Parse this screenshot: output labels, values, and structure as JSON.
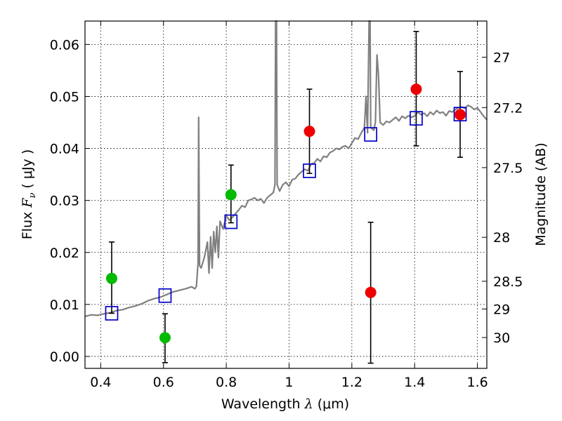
{
  "chart_data": {
    "type": "scatter",
    "xlabel_prefix": "Wavelength  ",
    "xlabel_symbol": "λ",
    "xlabel_unit": " (μm)",
    "ylabel_prefix": "Flux  ",
    "ylabel_symbol": "F",
    "ylabel_subscript": "ν",
    "ylabel_unit": "  ( μJy )",
    "y2label": "Magnitude (AB)",
    "xlim": [
      0.35,
      1.63
    ],
    "ylim": [
      -0.0023,
      0.0645
    ],
    "grid": true,
    "grid_style": "dotted",
    "x_ticks": [
      {
        "value": 0.4,
        "label": "0.4"
      },
      {
        "value": 0.6,
        "label": "0.6"
      },
      {
        "value": 0.8,
        "label": "0.8"
      },
      {
        "value": 1.0,
        "label": "1"
      },
      {
        "value": 1.2,
        "label": "1.2"
      },
      {
        "value": 1.4,
        "label": "1.4"
      },
      {
        "value": 1.6,
        "label": "1.6"
      }
    ],
    "y_ticks": [
      {
        "value": 0.0,
        "label": "0.00"
      },
      {
        "value": 0.01,
        "label": "0.01"
      },
      {
        "value": 0.02,
        "label": "0.02"
      },
      {
        "value": 0.03,
        "label": "0.03"
      },
      {
        "value": 0.04,
        "label": "0.04"
      },
      {
        "value": 0.05,
        "label": "0.05"
      },
      {
        "value": 0.06,
        "label": "0.06"
      }
    ],
    "y2_ticks": [
      {
        "mag": 27,
        "label": "27"
      },
      {
        "mag": 27.2,
        "label": "27.2"
      },
      {
        "mag": 27.5,
        "label": "27.5"
      },
      {
        "mag": 28,
        "label": "28"
      },
      {
        "mag": 28.5,
        "label": "28.5"
      },
      {
        "mag": 29,
        "label": "29"
      },
      {
        "mag": 30,
        "label": "30"
      }
    ],
    "colors": {
      "spectrum": "#808080",
      "model": "#0000cc",
      "green": "#00bb00",
      "red": "#ee0000",
      "error": "#000000"
    },
    "spectrum": [
      [
        0.35,
        0.0077
      ],
      [
        0.37,
        0.008
      ],
      [
        0.39,
        0.0079
      ],
      [
        0.41,
        0.0082
      ],
      [
        0.43,
        0.0084
      ],
      [
        0.45,
        0.0088
      ],
      [
        0.47,
        0.009
      ],
      [
        0.49,
        0.0094
      ],
      [
        0.51,
        0.0097
      ],
      [
        0.53,
        0.0101
      ],
      [
        0.55,
        0.0107
      ],
      [
        0.57,
        0.0111
      ],
      [
        0.59,
        0.0114
      ],
      [
        0.61,
        0.0119
      ],
      [
        0.63,
        0.0124
      ],
      [
        0.65,
        0.0127
      ],
      [
        0.67,
        0.013
      ],
      [
        0.69,
        0.0134
      ],
      [
        0.7,
        0.013
      ],
      [
        0.705,
        0.0135
      ],
      [
        0.71,
        0.018
      ],
      [
        0.712,
        0.046
      ],
      [
        0.715,
        0.0175
      ],
      [
        0.72,
        0.017
      ],
      [
        0.73,
        0.019
      ],
      [
        0.74,
        0.022
      ],
      [
        0.745,
        0.016
      ],
      [
        0.75,
        0.023
      ],
      [
        0.755,
        0.017
      ],
      [
        0.76,
        0.024
      ],
      [
        0.765,
        0.02
      ],
      [
        0.77,
        0.025
      ],
      [
        0.775,
        0.019
      ],
      [
        0.78,
        0.026
      ],
      [
        0.79,
        0.0245
      ],
      [
        0.8,
        0.027
      ],
      [
        0.81,
        0.0262
      ],
      [
        0.82,
        0.0268
      ],
      [
        0.83,
        0.0275
      ],
      [
        0.84,
        0.0282
      ],
      [
        0.85,
        0.029
      ],
      [
        0.86,
        0.0287
      ],
      [
        0.87,
        0.03
      ],
      [
        0.88,
        0.0302
      ],
      [
        0.89,
        0.0305
      ],
      [
        0.9,
        0.03
      ],
      [
        0.91,
        0.0303
      ],
      [
        0.92,
        0.0295
      ],
      [
        0.93,
        0.0305
      ],
      [
        0.94,
        0.031
      ],
      [
        0.95,
        0.0315
      ],
      [
        0.955,
        0.033
      ],
      [
        0.957,
        0.065
      ],
      [
        0.96,
        0.065
      ],
      [
        0.962,
        0.033
      ],
      [
        0.97,
        0.0318
      ],
      [
        0.98,
        0.033
      ],
      [
        0.99,
        0.0335
      ],
      [
        1.0,
        0.0327
      ],
      [
        1.01,
        0.034
      ],
      [
        1.02,
        0.0342
      ],
      [
        1.03,
        0.035
      ],
      [
        1.04,
        0.0355
      ],
      [
        1.05,
        0.036
      ],
      [
        1.06,
        0.0357
      ],
      [
        1.07,
        0.037
      ],
      [
        1.08,
        0.0372
      ],
      [
        1.09,
        0.038
      ],
      [
        1.1,
        0.0375
      ],
      [
        1.11,
        0.0385
      ],
      [
        1.12,
        0.0383
      ],
      [
        1.13,
        0.0392
      ],
      [
        1.14,
        0.0395
      ],
      [
        1.15,
        0.04
      ],
      [
        1.16,
        0.0398
      ],
      [
        1.17,
        0.0403
      ],
      [
        1.18,
        0.0405
      ],
      [
        1.19,
        0.04
      ],
      [
        1.2,
        0.041
      ],
      [
        1.21,
        0.042
      ],
      [
        1.22,
        0.0418
      ],
      [
        1.23,
        0.043
      ],
      [
        1.24,
        0.044
      ],
      [
        1.245,
        0.05
      ],
      [
        1.25,
        0.043
      ],
      [
        1.255,
        0.065
      ],
      [
        1.258,
        0.065
      ],
      [
        1.26,
        0.044
      ],
      [
        1.27,
        0.0435
      ],
      [
        1.275,
        0.045
      ],
      [
        1.28,
        0.058
      ],
      [
        1.285,
        0.054
      ],
      [
        1.29,
        0.045
      ],
      [
        1.3,
        0.0445
      ],
      [
        1.31,
        0.0452
      ],
      [
        1.32,
        0.045
      ],
      [
        1.33,
        0.0455
      ],
      [
        1.34,
        0.046
      ],
      [
        1.35,
        0.0453
      ],
      [
        1.36,
        0.0462
      ],
      [
        1.37,
        0.0458
      ],
      [
        1.38,
        0.0463
      ],
      [
        1.39,
        0.046
      ],
      [
        1.4,
        0.0462
      ],
      [
        1.41,
        0.047
      ],
      [
        1.42,
        0.0465
      ],
      [
        1.43,
        0.0468
      ],
      [
        1.44,
        0.0462
      ],
      [
        1.45,
        0.047
      ],
      [
        1.46,
        0.0465
      ],
      [
        1.47,
        0.0473
      ],
      [
        1.48,
        0.0468
      ],
      [
        1.49,
        0.047
      ],
      [
        1.5,
        0.0463
      ],
      [
        1.51,
        0.0472
      ],
      [
        1.52,
        0.047
      ],
      [
        1.53,
        0.0475
      ],
      [
        1.54,
        0.0478
      ],
      [
        1.55,
        0.048
      ],
      [
        1.56,
        0.0477
      ],
      [
        1.57,
        0.0483
      ],
      [
        1.58,
        0.048
      ],
      [
        1.59,
        0.0475
      ],
      [
        1.6,
        0.0478
      ],
      [
        1.61,
        0.047
      ],
      [
        1.62,
        0.0462
      ],
      [
        1.63,
        0.0455
      ]
    ],
    "model_points": [
      {
        "x": 0.435,
        "y": 0.0083
      },
      {
        "x": 0.605,
        "y": 0.0117
      },
      {
        "x": 0.815,
        "y": 0.0259
      },
      {
        "x": 1.065,
        "y": 0.0357
      },
      {
        "x": 1.26,
        "y": 0.0427
      },
      {
        "x": 1.405,
        "y": 0.0458
      },
      {
        "x": 1.545,
        "y": 0.0466
      }
    ],
    "measurements": [
      {
        "x": 0.435,
        "y": 0.015,
        "ylo": 0.0083,
        "yhi": 0.022,
        "color": "green"
      },
      {
        "x": 0.605,
        "y": 0.0036,
        "ylo": -0.0012,
        "yhi": 0.0082,
        "color": "green"
      },
      {
        "x": 0.815,
        "y": 0.0311,
        "ylo": 0.0257,
        "yhi": 0.0368,
        "color": "green"
      },
      {
        "x": 1.065,
        "y": 0.0433,
        "ylo": 0.0352,
        "yhi": 0.0514,
        "color": "red"
      },
      {
        "x": 1.26,
        "y": 0.0123,
        "ylo": -0.0013,
        "yhi": 0.0258,
        "color": "red"
      },
      {
        "x": 1.405,
        "y": 0.0514,
        "ylo": 0.0405,
        "yhi": 0.0625,
        "color": "red"
      },
      {
        "x": 1.545,
        "y": 0.0465,
        "ylo": 0.0383,
        "yhi": 0.0548,
        "color": "red"
      }
    ]
  }
}
